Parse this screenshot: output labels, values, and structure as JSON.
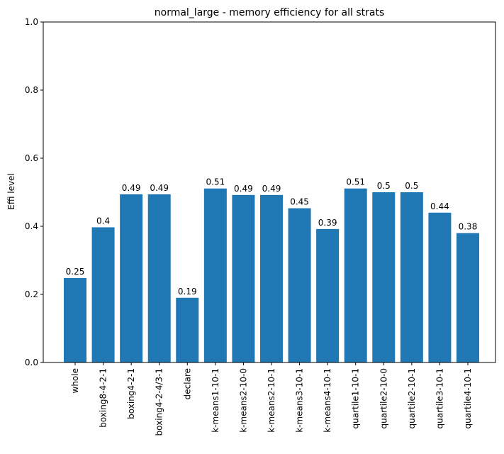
{
  "chart_data": {
    "type": "bar",
    "title": "normal_large - memory efficiency for all strats",
    "xlabel": "",
    "ylabel": "Effi level",
    "ylim": [
      0,
      1.0
    ],
    "yticks": [
      "0.0",
      "0.2",
      "0.4",
      "0.6",
      "0.8",
      "1.0"
    ],
    "categories": [
      "whole",
      "boxing8-4-2-1",
      "boxing4-2-1",
      "boxing4-2-4/3-1",
      "declare",
      "k-means1-10-1",
      "k-means2-10-0",
      "k-means2-10-1",
      "k-means3-10-1",
      "k-means4-10-1",
      "quartile1-10-1",
      "quartile2-10-0",
      "quartile2-10-1",
      "quartile3-10-1",
      "quartile4-10-1"
    ],
    "values": [
      0.248,
      0.397,
      0.494,
      0.494,
      0.19,
      0.511,
      0.492,
      0.492,
      0.453,
      0.392,
      0.511,
      0.5,
      0.5,
      0.44,
      0.38
    ],
    "data_labels": [
      "0.25",
      "0.4",
      "0.49",
      "0.49",
      "0.19",
      "0.51",
      "0.49",
      "0.49",
      "0.45",
      "0.39",
      "0.51",
      "0.5",
      "0.5",
      "0.44",
      "0.38"
    ],
    "bar_color": "#1f77b4",
    "grid": false,
    "legend": "none"
  }
}
